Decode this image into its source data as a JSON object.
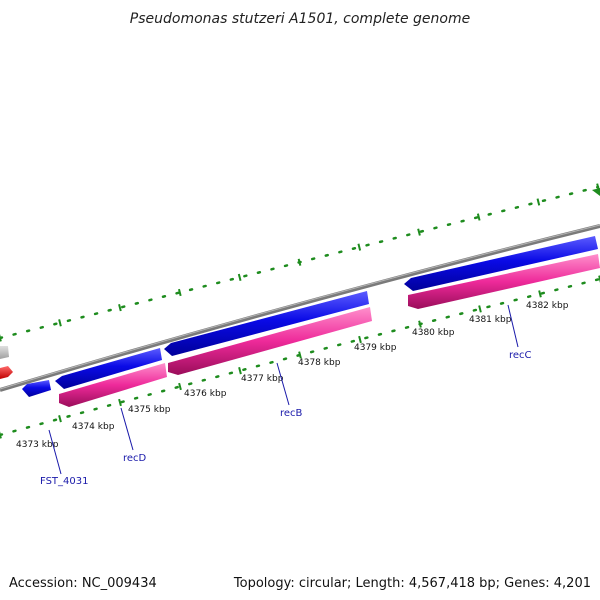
{
  "header": {
    "title": "Pseudomonas stutzeri A1501, complete genome"
  },
  "footer": {
    "accession": "Accession: NC_009434",
    "topology": "Topology: circular; Length: 4,567,418 bp; Genes: 4,201"
  },
  "scale": {
    "labels": [
      "4373 kbp",
      "4374 kbp",
      "4375 kbp",
      "4376 kbp",
      "4377 kbp",
      "4378 kbp",
      "4379 kbp",
      "4380 kbp",
      "4381 kbp",
      "4382 kbp"
    ]
  },
  "genes": {
    "labels": [
      "FST_4031",
      "recD",
      "recB",
      "recC"
    ]
  },
  "colors": {
    "forward_strand": "#0a0ae6",
    "reverse_strand": "#ee2a9a",
    "backbone": "#8a8a8a",
    "ticks": "#1e8c1e",
    "label_text": "#1a1aaa",
    "partial_red": "#ff0000"
  }
}
